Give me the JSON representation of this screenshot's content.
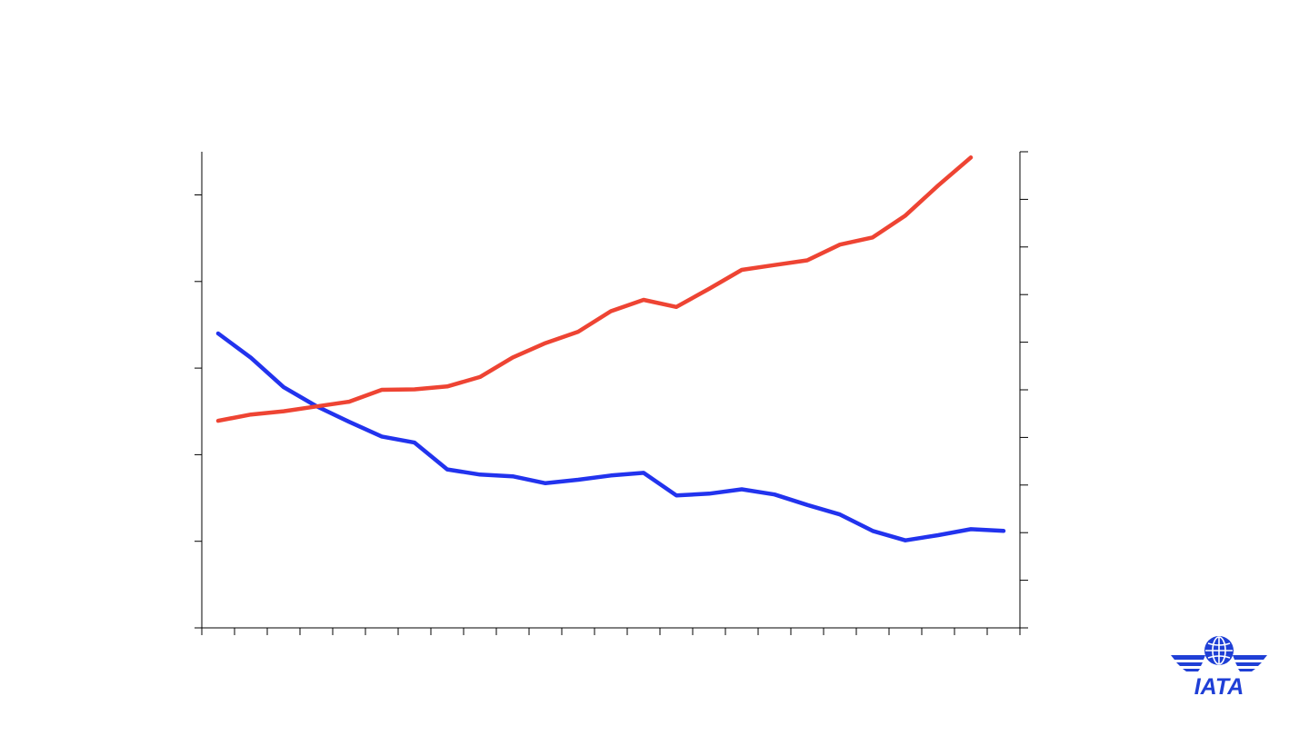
{
  "chart_data": {
    "type": "line",
    "title": "",
    "xlabel": "",
    "ylabel_left": "",
    "ylabel_right": "",
    "x_count": 25,
    "ylim_left": [
      0,
      5.5
    ],
    "ylim_right": [
      0,
      10
    ],
    "left_ticks": 5,
    "right_ticks": 10,
    "series": [
      {
        "axis": "left",
        "color": "#2233ee",
        "values": [
          3.4,
          3.12,
          2.78,
          2.56,
          2.38,
          2.21,
          2.14,
          1.83,
          1.77,
          1.75,
          1.67,
          1.71,
          1.76,
          1.79,
          1.53,
          1.55,
          1.6,
          1.54,
          1.42,
          1.31,
          1.12,
          1.01,
          1.07,
          1.14,
          1.12
        ]
      },
      {
        "axis": "right",
        "color": "#ee4433",
        "values": [
          4.35,
          4.48,
          4.55,
          4.65,
          4.75,
          5.0,
          5.01,
          5.07,
          5.27,
          5.68,
          5.98,
          6.22,
          6.65,
          6.89,
          6.74,
          7.12,
          7.52,
          7.62,
          7.72,
          8.05,
          8.2,
          8.66,
          9.29,
          9.88,
          null
        ]
      }
    ]
  },
  "logo": {
    "text": "IATA",
    "icon": "iata-globe-wings-icon",
    "color": "#1f3fd6"
  }
}
